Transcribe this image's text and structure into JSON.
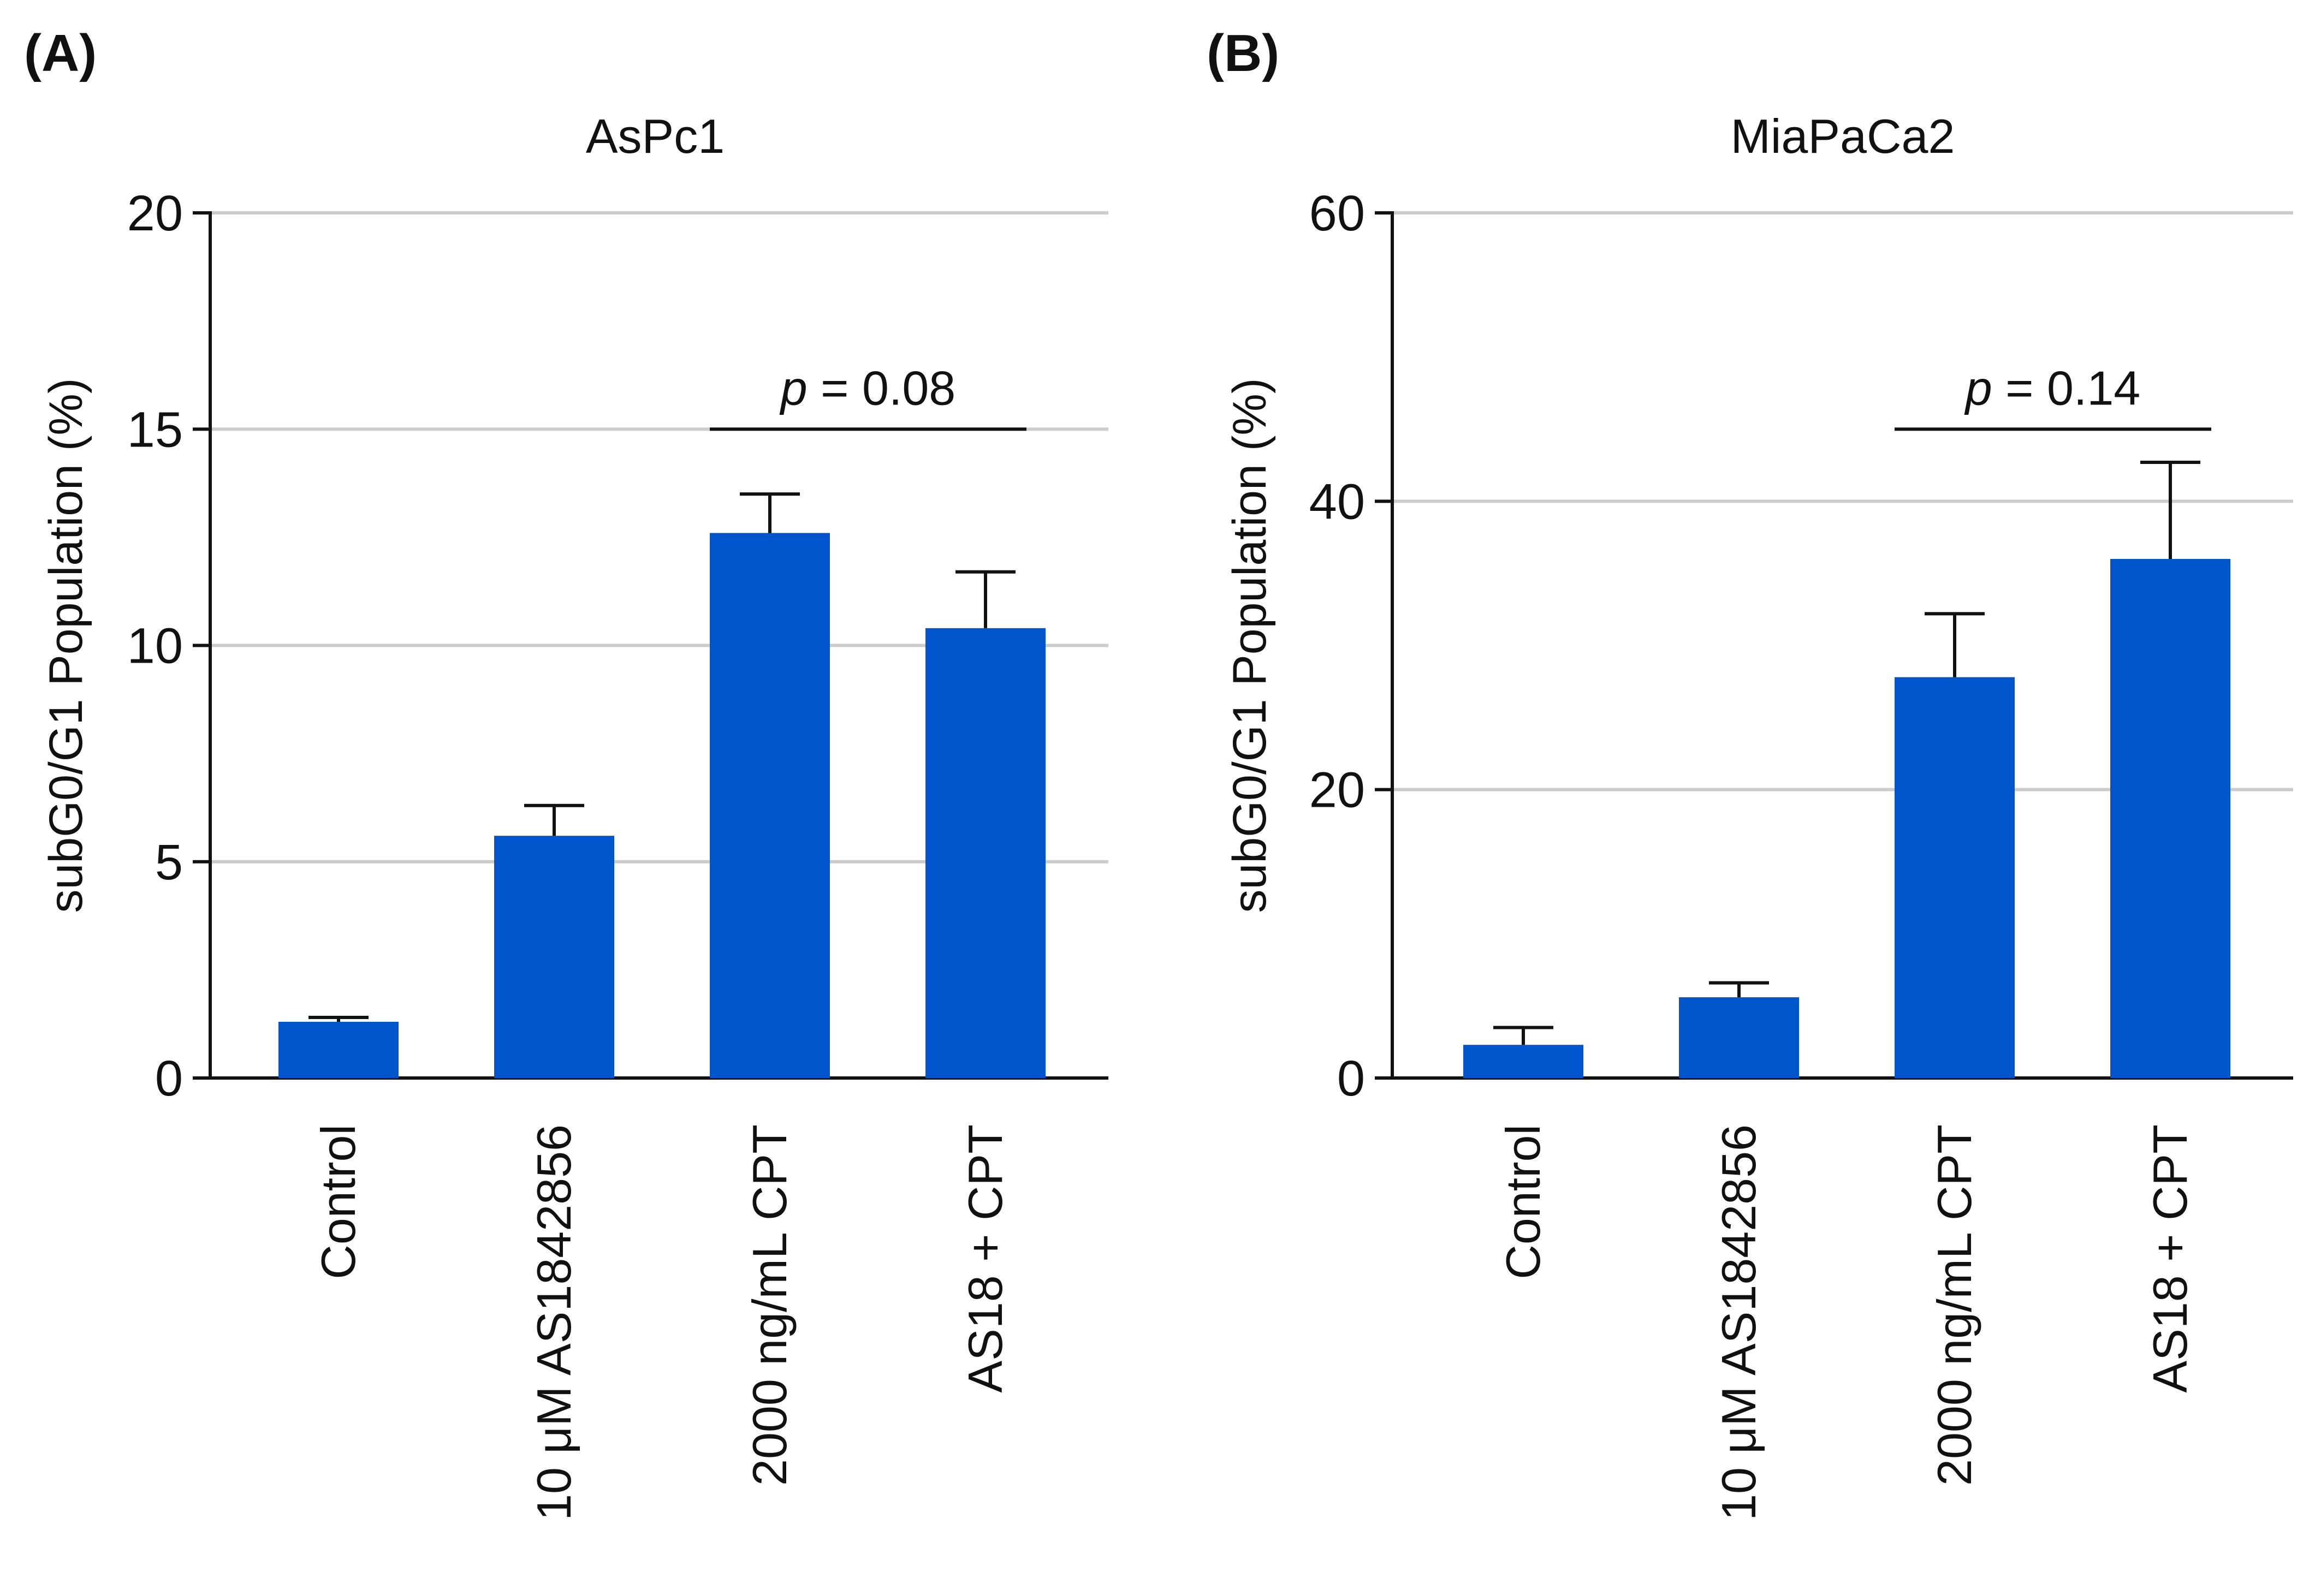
{
  "figure": {
    "panels": [
      "(A)",
      "(B)"
    ]
  },
  "chart_data": [
    {
      "panel_label": "A",
      "type": "bar",
      "title": "AsPc1",
      "xlabel": "",
      "ylabel": "subG0/G1 Population (%)",
      "ylim": [
        0,
        20
      ],
      "yticks": [
        0,
        5,
        10,
        15,
        20
      ],
      "grid": true,
      "categories": [
        "Control",
        "10 μM AS1842856",
        "2000 ng/mL CPT",
        "AS18 + CPT"
      ],
      "values": [
        1.3,
        5.6,
        12.6,
        10.4
      ],
      "error_upper": [
        0.1,
        0.7,
        0.9,
        1.3
      ],
      "bar_color": "#0055CC",
      "annotation": {
        "p_symbol": "p",
        "p_text": " = 0.08",
        "between": [
          2,
          3
        ],
        "y": 15
      }
    },
    {
      "panel_label": "B",
      "type": "bar",
      "title": "MiaPaCa2",
      "xlabel": "",
      "ylabel": "subG0/G1 Population (%)",
      "ylim": [
        0,
        60
      ],
      "yticks": [
        0,
        20,
        40,
        60
      ],
      "grid": true,
      "categories": [
        "Control",
        "10 μM AS1842856",
        "2000 ng/mL CPT",
        "AS18 + CPT"
      ],
      "values": [
        2.3,
        5.6,
        27.8,
        36.0
      ],
      "error_upper": [
        1.2,
        1.0,
        4.4,
        6.7
      ],
      "bar_color": "#0055CC",
      "annotation": {
        "p_symbol": "p",
        "p_text": " = 0.14",
        "between": [
          2,
          3
        ],
        "y": 45
      }
    }
  ]
}
